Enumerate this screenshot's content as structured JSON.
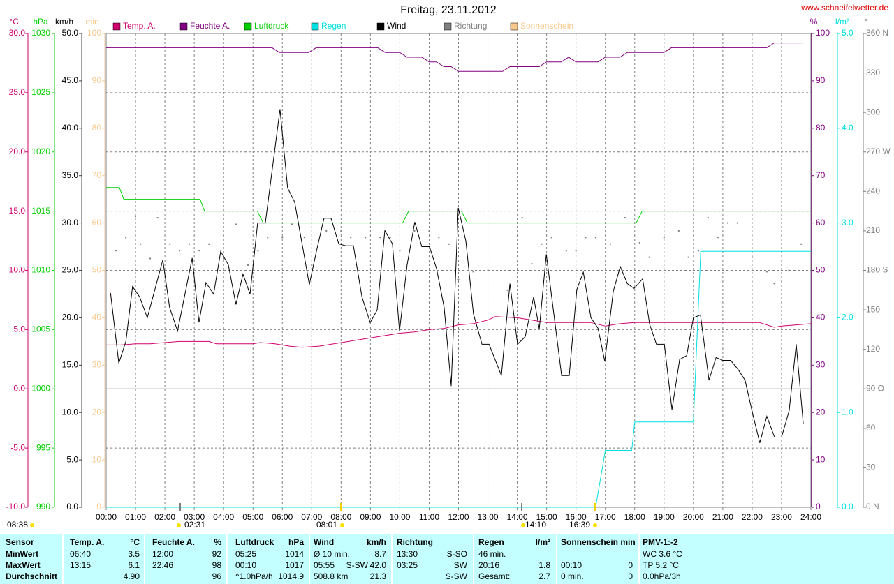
{
  "chart_data": {
    "type": "line",
    "title": "Freitag, 23.11.2012",
    "source": "www.schneifelwetter.de",
    "xlim": [
      0,
      24
    ],
    "xticks": [
      {
        "value": 0,
        "label": "00:00"
      },
      {
        "value": 1,
        "label": "01:00"
      },
      {
        "value": 2,
        "label": "02:00"
      },
      {
        "value": 3,
        "label": "03:00"
      },
      {
        "value": 4,
        "label": "04:00"
      },
      {
        "value": 5,
        "label": "05:00"
      },
      {
        "value": 6,
        "label": "06:00"
      },
      {
        "value": 7,
        "label": "07:00"
      },
      {
        "value": 8,
        "label": "08:00"
      },
      {
        "value": 9,
        "label": "09:00"
      },
      {
        "value": 10,
        "label": "10:00"
      },
      {
        "value": 11,
        "label": "11:00"
      },
      {
        "value": 12,
        "label": "12:00"
      },
      {
        "value": 13,
        "label": "13:00"
      },
      {
        "value": 14,
        "label": "14:00"
      },
      {
        "value": 15,
        "label": "15:00"
      },
      {
        "value": 16,
        "label": "16:00"
      },
      {
        "value": 17,
        "label": "17:00"
      },
      {
        "value": 18,
        "label": "18:00"
      },
      {
        "value": 19,
        "label": "19:00"
      },
      {
        "value": 20,
        "label": "20:00"
      },
      {
        "value": 21,
        "label": "21:00"
      },
      {
        "value": 22,
        "label": "22:00"
      },
      {
        "value": 23,
        "label": "23:00"
      },
      {
        "value": 24,
        "label": "24:00"
      }
    ],
    "grid": true,
    "ylabel": "°C",
    "ylim": [
      -10,
      30
    ],
    "yticks": [
      {
        "value": -10,
        "label": "-10.0"
      },
      {
        "value": -5,
        "label": "-5.0"
      },
      {
        "value": 0,
        "label": "0.0"
      },
      {
        "value": 5,
        "label": "5.0"
      },
      {
        "value": 10,
        "label": "10.0"
      },
      {
        "value": 15,
        "label": "15.0"
      },
      {
        "value": 20,
        "label": "20.0"
      },
      {
        "value": 25,
        "label": "25.0"
      },
      {
        "value": 30,
        "label": "30.0"
      }
    ],
    "y2label": "hPa",
    "y2lim": [
      990,
      1030
    ],
    "y2ticks": [
      990,
      995,
      1000,
      1005,
      1010,
      1015,
      1020,
      1025,
      1030
    ],
    "y3label": "km/h",
    "y3lim": [
      0,
      50
    ],
    "y3ticks": [
      {
        "value": 0,
        "label": "0.0"
      },
      {
        "value": 5,
        "label": "5.0"
      },
      {
        "value": 10,
        "label": "10.0"
      },
      {
        "value": 15,
        "label": "15.0"
      },
      {
        "value": 20,
        "label": "20.0"
      },
      {
        "value": 25,
        "label": "25.0"
      },
      {
        "value": 30,
        "label": "30.0"
      },
      {
        "value": 35,
        "label": "35.0"
      },
      {
        "value": 40,
        "label": "40.0"
      },
      {
        "value": 45,
        "label": "45.0"
      },
      {
        "value": 50,
        "label": "50.0"
      }
    ],
    "y4label": "min",
    "y4lim": [
      0,
      100
    ],
    "y4ticks": [
      0,
      10,
      20,
      30,
      40,
      50,
      60,
      70,
      80,
      90,
      100
    ],
    "y5label": "%",
    "y5lim": [
      0,
      100
    ],
    "y5ticks": [
      0,
      10,
      20,
      30,
      40,
      50,
      60,
      70,
      80,
      90,
      100
    ],
    "y6label": "l/m²",
    "y6lim": [
      0,
      5
    ],
    "y6ticks": [
      {
        "value": 0,
        "label": "0.0"
      },
      {
        "value": 1,
        "label": "1.0"
      },
      {
        "value": 2,
        "label": "2.0"
      },
      {
        "value": 3,
        "label": "3.0"
      },
      {
        "value": 4,
        "label": "4.0"
      },
      {
        "value": 5,
        "label": "5.0"
      }
    ],
    "y7label": "°",
    "y7lim": [
      0,
      360
    ],
    "y7ticks": [
      {
        "value": 0,
        "label": "0 N"
      },
      30,
      60,
      {
        "value": 90,
        "label": "90 O"
      },
      120,
      150,
      {
        "value": 180,
        "label": "180 S"
      },
      210,
      240,
      {
        "value": 270,
        "label": "270 W"
      },
      300,
      330,
      {
        "value": 360,
        "label": "360 N"
      }
    ],
    "series": [
      {
        "name": "Temp. A.",
        "color": "#d0006f",
        "axis": "y",
        "x": [
          0,
          0.5,
          1.0,
          1.5,
          2.0,
          2.5,
          3.5,
          3.75,
          5.0,
          5.25,
          5.75,
          6.25,
          6.67,
          7.25,
          7.75,
          8.25,
          9.0,
          9.5,
          10.0,
          10.5,
          11.0,
          11.5,
          12.0,
          12.5,
          13.0,
          13.25,
          14.0,
          14.5,
          15.0,
          16.5,
          17.0,
          17.5,
          18.0,
          22.25,
          22.75,
          23.0,
          23.5,
          24.0
        ],
        "values": [
          3.7,
          3.7,
          3.8,
          3.8,
          3.9,
          4.0,
          4.0,
          3.8,
          3.8,
          3.9,
          3.8,
          3.6,
          3.5,
          3.6,
          3.8,
          4.0,
          4.3,
          4.5,
          4.7,
          4.8,
          5.0,
          5.1,
          5.4,
          5.5,
          5.8,
          6.1,
          6.0,
          5.8,
          5.6,
          5.6,
          5.3,
          5.5,
          5.6,
          5.6,
          5.2,
          5.3,
          5.4,
          5.5
        ]
      },
      {
        "name": "Feuchte A.",
        "color": "#800080",
        "axis": "y5",
        "x": [
          0,
          5.65,
          5.9,
          6.9,
          7.15,
          9.25,
          9.5,
          10.0,
          10.25,
          10.75,
          11.0,
          11.25,
          11.5,
          11.75,
          12.0,
          13.5,
          13.75,
          14.75,
          15.0,
          15.5,
          15.75,
          16.0,
          16.75,
          17.0,
          17.5,
          17.75,
          19.0,
          19.25,
          22.5,
          22.75,
          23.75
        ],
        "values": [
          97,
          97,
          96,
          96,
          97,
          97,
          96,
          96,
          95,
          95,
          94,
          94,
          93,
          93,
          92,
          92,
          93,
          93,
          94,
          94,
          95,
          94,
          94,
          95,
          95,
          96,
          96,
          97,
          97,
          98,
          98
        ]
      },
      {
        "name": "Luftdruck",
        "color": "#00d000",
        "axis": "y2",
        "x": [
          0,
          0.45,
          0.6,
          3.2,
          3.35,
          5.15,
          5.35,
          10.1,
          10.3,
          12.1,
          12.3,
          18.05,
          18.25,
          24
        ],
        "values": [
          1017,
          1017,
          1016,
          1016,
          1015,
          1015,
          1014,
          1014,
          1015,
          1015,
          1014,
          1014,
          1015,
          1015
        ]
      },
      {
        "name": "Regen",
        "color": "#00e0e0",
        "axis": "y6",
        "x": [
          0,
          16.67,
          17.0,
          17.9,
          18.0,
          20.0,
          20.25,
          24
        ],
        "values": [
          0,
          0,
          0.6,
          0.6,
          0.9,
          0.9,
          2.7,
          2.7
        ]
      },
      {
        "name": "Wind",
        "color": "#000000",
        "axis": "y3",
        "x": [
          0.15,
          0.43,
          0.67,
          0.9,
          1.14,
          1.4,
          1.93,
          2.16,
          2.43,
          2.93,
          3.16,
          3.4,
          3.66,
          3.9,
          4.16,
          4.42,
          4.66,
          4.9,
          5.16,
          5.42,
          5.92,
          6.18,
          6.42,
          6.92,
          7.16,
          7.42,
          7.66,
          7.92,
          8.16,
          8.42,
          8.71,
          8.99,
          9.23,
          9.49,
          9.75,
          9.99,
          10.25,
          10.51,
          10.75,
          11.01,
          11.25,
          11.51,
          11.75,
          11.99,
          12.25,
          12.51,
          12.8,
          13.04,
          13.46,
          13.75,
          14.01,
          14.27,
          14.56,
          14.75,
          14.99,
          15.51,
          15.77,
          16.03,
          16.25,
          16.51,
          16.75,
          16.98,
          17.27,
          17.51,
          17.75,
          17.98,
          18.27,
          18.51,
          18.74,
          19.01,
          19.27,
          19.53,
          19.77,
          20.0,
          20.24,
          20.53,
          20.77,
          21.0,
          21.27,
          21.53,
          21.76,
          22.0,
          22.26,
          22.5,
          22.76,
          23.0,
          23.26,
          23.5,
          23.74
        ],
        "values": [
          22.6,
          15.2,
          17.5,
          23.3,
          22.2,
          20.0,
          26.1,
          21.1,
          18.6,
          26.3,
          19.5,
          23.7,
          22.5,
          27.0,
          25.6,
          21.4,
          24.6,
          22.5,
          30.0,
          30.0,
          42.0,
          33.7,
          32.2,
          23.5,
          27.0,
          30.5,
          30.5,
          27.8,
          27.6,
          27.6,
          22.2,
          19.5,
          20.8,
          29.2,
          27.8,
          18.6,
          25.6,
          30.1,
          27.5,
          27.5,
          25.2,
          21.1,
          12.8,
          31.6,
          28.1,
          20.4,
          17.2,
          17.2,
          13.9,
          23.6,
          17.2,
          18.0,
          22.2,
          18.8,
          26.7,
          13.9,
          13.9,
          23.0,
          24.8,
          20.0,
          18.9,
          15.4,
          22.8,
          25.4,
          23.6,
          23.1,
          24.1,
          19.3,
          17.2,
          17.2,
          10.3,
          15.6,
          16.0,
          20.0,
          20.3,
          13.4,
          15.8,
          15.5,
          15.5,
          14.5,
          13.4,
          10.1,
          6.8,
          9.6,
          7.4,
          7.4,
          10.2,
          17.2,
          8.8
        ]
      },
      {
        "name": "Richtung",
        "color": "#808080",
        "axis": "y7",
        "type": "scatter",
        "x": [
          0.33,
          0.67,
          1.0,
          1.17,
          1.5,
          1.75,
          2.17,
          2.5,
          2.83,
          3.17,
          3.5,
          4.0,
          4.42,
          4.83,
          5.17,
          5.5,
          6.0,
          6.33,
          6.75,
          7.0,
          7.5,
          8.0,
          8.33,
          8.83,
          9.33,
          9.67,
          10.0,
          10.5,
          11.0,
          11.33,
          11.67,
          12.0,
          12.5,
          13.0,
          13.67,
          14.17,
          14.5,
          14.83,
          15.17,
          15.67,
          16.0,
          16.33,
          16.67,
          17.17,
          17.67,
          18.17,
          18.5,
          19.0,
          19.5,
          19.83,
          20.17,
          20.5,
          20.83,
          21.17,
          21.5,
          22.0,
          22.5,
          22.75,
          23.25,
          23.67
        ],
        "values": [
          195,
          205,
          221,
          200,
          189,
          220,
          200,
          195,
          200,
          195,
          200,
          189,
          215,
          184,
          195,
          205,
          205,
          215,
          205,
          184,
          210,
          210,
          205,
          205,
          205,
          205,
          195,
          210,
          210,
          205,
          200,
          173,
          179,
          180,
          165,
          220,
          185,
          200,
          205,
          195,
          195,
          205,
          205,
          200,
          220,
          201,
          190,
          205,
          210,
          190,
          195,
          220,
          205,
          216,
          216,
          190,
          179,
          170,
          180,
          200
        ]
      },
      {
        "name": "Sonnenschein",
        "color": "#f8c88c",
        "axis": "y4",
        "x": [],
        "values": []
      }
    ],
    "annotations": [
      {
        "text": "08:38"
      },
      {
        "text": "02:31"
      },
      {
        "text": "08:01"
      },
      {
        "text": "14:10"
      },
      {
        "text": "16:39"
      }
    ]
  },
  "table": {
    "rows": [
      [
        "Sensor",
        "Temp. A.",
        "°C",
        "Feuchte A.",
        "%",
        "Luftdruck",
        "hPa",
        "Wind",
        null,
        "km/h",
        "Richtung",
        null,
        "Regen",
        "l/m²",
        "Sonnenschein min",
        null,
        "PMV-1:-2"
      ],
      [
        "MinWert",
        "06:40",
        "3.5",
        "12:00",
        "92",
        "05:25",
        "1014",
        "Ø 10 min.",
        null,
        "8.7",
        "13:30",
        "S-SO",
        "46 min.",
        null,
        null,
        null,
        "WC 3.6 °C"
      ],
      [
        "MaxWert",
        "13:15",
        "6.1",
        "22:46",
        "98",
        "00:10",
        "1017",
        "05:55",
        "S-SW",
        "42.0",
        "03:25",
        "SW",
        "20:16",
        "1.8",
        "00:10",
        "0",
        "TP 5.2 °C"
      ],
      [
        "Durchschnitt",
        null,
        "4.90",
        null,
        "96",
        "^1.0hPa/h",
        "1014.9",
        "508.8 km",
        null,
        "21.3",
        null,
        "S-SW",
        "Gesamt:",
        "2.7",
        "0 min.",
        "0",
        "0.0hPa/3h"
      ]
    ]
  }
}
